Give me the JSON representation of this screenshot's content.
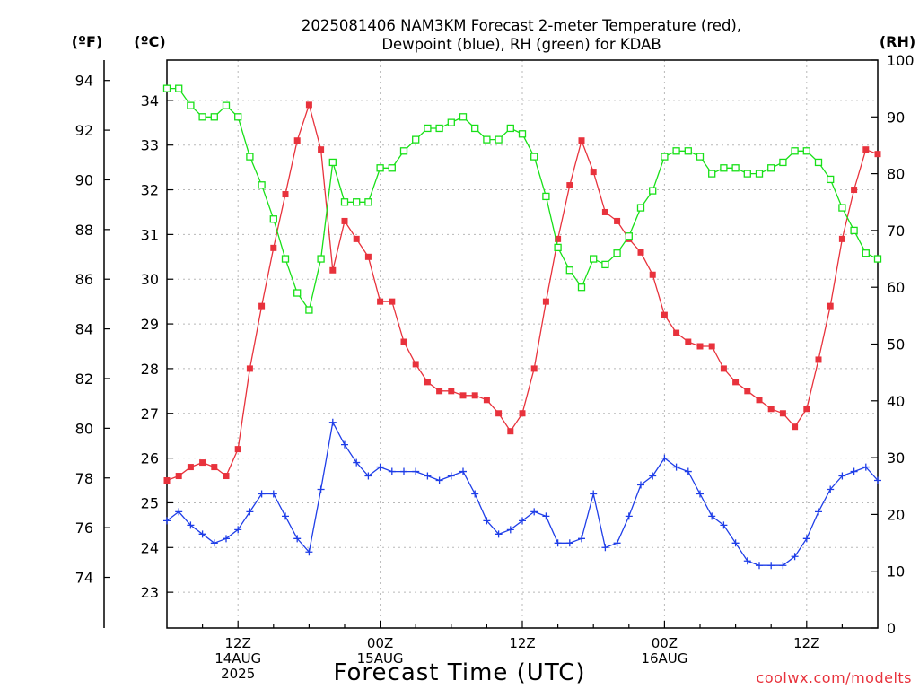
{
  "chart_data": {
    "type": "line",
    "title_lines": [
      "2025081406 NAM3KM Forecast 2-meter Temperature (red),",
      "Dewpoint (blue), RH (green) for KDAB"
    ],
    "xlabel": "Forecast Time (UTC)",
    "credit": "coolwx.com/modelts",
    "units": {
      "f": "(ºF)",
      "c": "(ºC)",
      "rh": "(RH)"
    },
    "x_hours_range": [
      0,
      60
    ],
    "c_range": [
      22.2,
      34.9
    ],
    "rh_range": [
      0,
      100
    ],
    "f_ticks": [
      "74",
      "76",
      "78",
      "80",
      "82",
      "84",
      "86",
      "88",
      "90",
      "92",
      "94"
    ],
    "c_ticks": [
      "23",
      "24",
      "25",
      "26",
      "27",
      "28",
      "29",
      "30",
      "31",
      "32",
      "33",
      "34"
    ],
    "rh_ticks": [
      "0",
      "10",
      "20",
      "30",
      "40",
      "50",
      "60",
      "70",
      "80",
      "90",
      "100"
    ],
    "x_ticks": [
      {
        "hour": 6,
        "lines": [
          "12Z",
          "14AUG",
          "2025"
        ]
      },
      {
        "hour": 18,
        "lines": [
          "00Z",
          "15AUG"
        ]
      },
      {
        "hour": 30,
        "lines": [
          "12Z"
        ]
      },
      {
        "hour": 42,
        "lines": [
          "00Z",
          "16AUG"
        ]
      },
      {
        "hour": 54,
        "lines": [
          "12Z"
        ]
      }
    ],
    "grid": true,
    "series": [
      {
        "name": "2-meter Temperature",
        "axis": "c",
        "color": "#e8323c",
        "marker": "filled-square",
        "values": [
          25.5,
          25.6,
          25.8,
          25.9,
          25.8,
          25.6,
          26.2,
          28.0,
          29.4,
          30.7,
          31.9,
          33.1,
          33.9,
          32.9,
          30.2,
          31.3,
          30.9,
          30.5,
          29.5,
          29.5,
          28.6,
          28.1,
          27.7,
          27.5,
          27.5,
          27.4,
          27.4,
          27.3,
          27.0,
          26.6,
          27.0,
          28.0,
          29.5,
          30.9,
          32.1,
          33.1,
          32.4,
          31.5,
          31.3,
          30.9,
          30.6,
          30.1,
          29.2,
          28.8,
          28.6,
          28.5,
          28.5,
          28.0,
          27.7,
          27.5,
          27.3,
          27.1,
          27.0,
          26.7,
          27.1,
          28.2,
          29.4,
          30.9,
          32.0,
          32.9,
          32.8
        ]
      },
      {
        "name": "Dewpoint",
        "axis": "c",
        "color": "#1f3ee8",
        "marker": "plus",
        "values": [
          24.6,
          24.8,
          24.5,
          24.3,
          24.1,
          24.2,
          24.4,
          24.8,
          25.2,
          25.2,
          24.7,
          24.2,
          23.9,
          25.3,
          26.8,
          26.3,
          25.9,
          25.6,
          25.8,
          25.7,
          25.7,
          25.7,
          25.6,
          25.5,
          25.6,
          25.7,
          25.2,
          24.6,
          24.3,
          24.4,
          24.6,
          24.8,
          24.7,
          24.1,
          24.1,
          24.2,
          25.2,
          24.0,
          24.1,
          24.7,
          25.4,
          25.6,
          26.0,
          25.8,
          25.7,
          25.2,
          24.7,
          24.5,
          24.1,
          23.7,
          23.6,
          23.6,
          23.6,
          23.8,
          24.2,
          24.8,
          25.3,
          25.6,
          25.7,
          25.8,
          25.5
        ]
      },
      {
        "name": "RH",
        "axis": "rh",
        "color": "#18e018",
        "marker": "open-square",
        "values": [
          95,
          95,
          92,
          90,
          90,
          92,
          90,
          83,
          78,
          72,
          65,
          59,
          56,
          65,
          82,
          75,
          75,
          75,
          81,
          81,
          84,
          86,
          88,
          88,
          89,
          90,
          88,
          86,
          86,
          88,
          87,
          83,
          76,
          67,
          63,
          60,
          65,
          64,
          66,
          69,
          74,
          77,
          83,
          84,
          84,
          83,
          80,
          81,
          81,
          80,
          80,
          81,
          82,
          84,
          84,
          82,
          79,
          74,
          70,
          66,
          65
        ]
      }
    ]
  }
}
